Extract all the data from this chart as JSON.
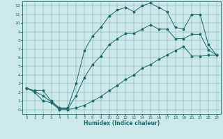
{
  "xlabel": "Humidex (Indice chaleur)",
  "bg_color": "#cce8e8",
  "line_color": "#1a6b6b",
  "xlim": [
    -0.5,
    23.5
  ],
  "ylim": [
    -0.5,
    12.5
  ],
  "xticks": [
    0,
    1,
    2,
    3,
    4,
    5,
    6,
    7,
    8,
    9,
    10,
    11,
    12,
    13,
    14,
    15,
    16,
    17,
    18,
    19,
    20,
    21,
    22,
    23
  ],
  "yticks": [
    0,
    1,
    2,
    3,
    4,
    5,
    6,
    7,
    8,
    9,
    10,
    11,
    12
  ],
  "line_max": {
    "x": [
      0,
      1,
      2,
      3,
      4,
      5,
      6,
      7,
      8,
      9,
      10,
      11,
      12,
      13,
      14,
      15,
      16,
      17,
      18,
      19,
      20,
      21,
      22,
      23
    ],
    "y": [
      2.5,
      2.2,
      2.2,
      1.0,
      0.2,
      0.2,
      3.0,
      6.8,
      8.5,
      9.5,
      10.8,
      11.5,
      11.8,
      11.3,
      12.0,
      12.3,
      11.8,
      11.3,
      9.5,
      9.3,
      11.0,
      11.0,
      7.5,
      6.3
    ]
  },
  "line_min": {
    "x": [
      0,
      1,
      2,
      3,
      4,
      5,
      6,
      7,
      8,
      9,
      10,
      11,
      12,
      13,
      14,
      15,
      16,
      17,
      18,
      19,
      20,
      21,
      22,
      23
    ],
    "y": [
      2.5,
      2.0,
      1.0,
      0.8,
      0.0,
      0.0,
      0.2,
      0.5,
      1.0,
      1.5,
      2.2,
      2.8,
      3.5,
      4.0,
      4.8,
      5.2,
      5.8,
      6.3,
      6.8,
      7.3,
      6.2,
      6.2,
      6.3,
      6.3
    ]
  },
  "line_mean": {
    "x": [
      0,
      1,
      2,
      3,
      4,
      5,
      6,
      7,
      8,
      9,
      10,
      11,
      12,
      13,
      14,
      15,
      16,
      17,
      18,
      19,
      20,
      21,
      22,
      23
    ],
    "y": [
      2.5,
      2.1,
      1.6,
      0.9,
      0.1,
      0.1,
      1.6,
      3.7,
      5.2,
      6.2,
      7.5,
      8.2,
      8.8,
      8.8,
      9.3,
      9.8,
      9.3,
      9.3,
      8.2,
      8.2,
      8.7,
      8.7,
      6.9,
      6.3
    ]
  }
}
